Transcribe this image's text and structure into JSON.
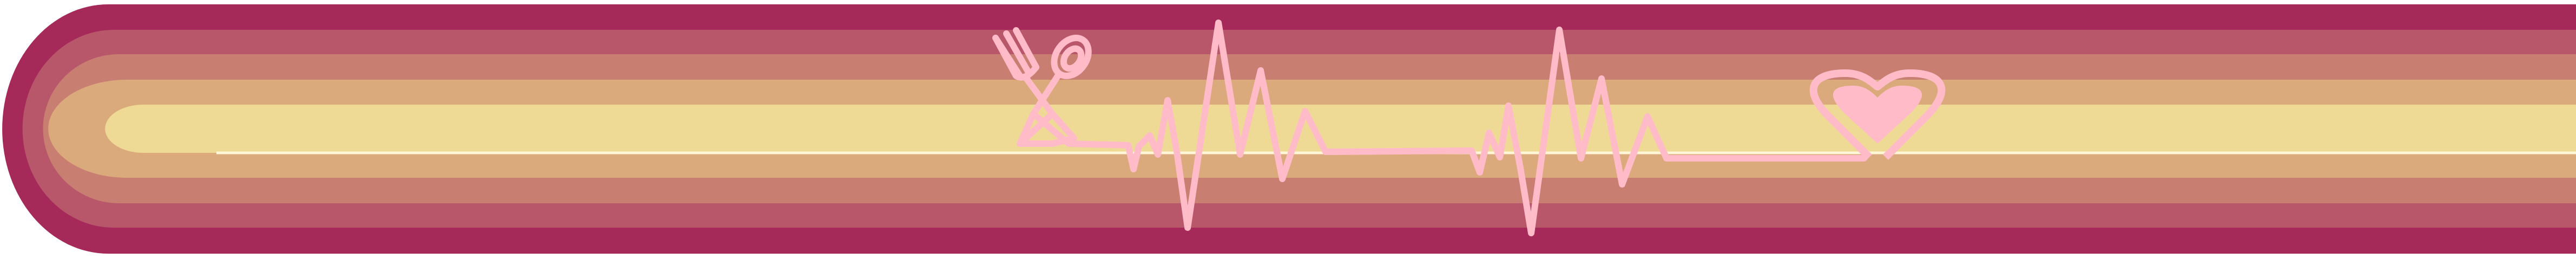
{
  "banner": {
    "stripe_colors": [
      "#A52A5A",
      "#B8566A",
      "#C97E72",
      "#DBAA7C",
      "#EEDA94"
    ],
    "line_color": "#FFBCC8",
    "icons": [
      "fork-and-spoon-icon",
      "heartbeat-line-icon",
      "heart-icon"
    ]
  }
}
